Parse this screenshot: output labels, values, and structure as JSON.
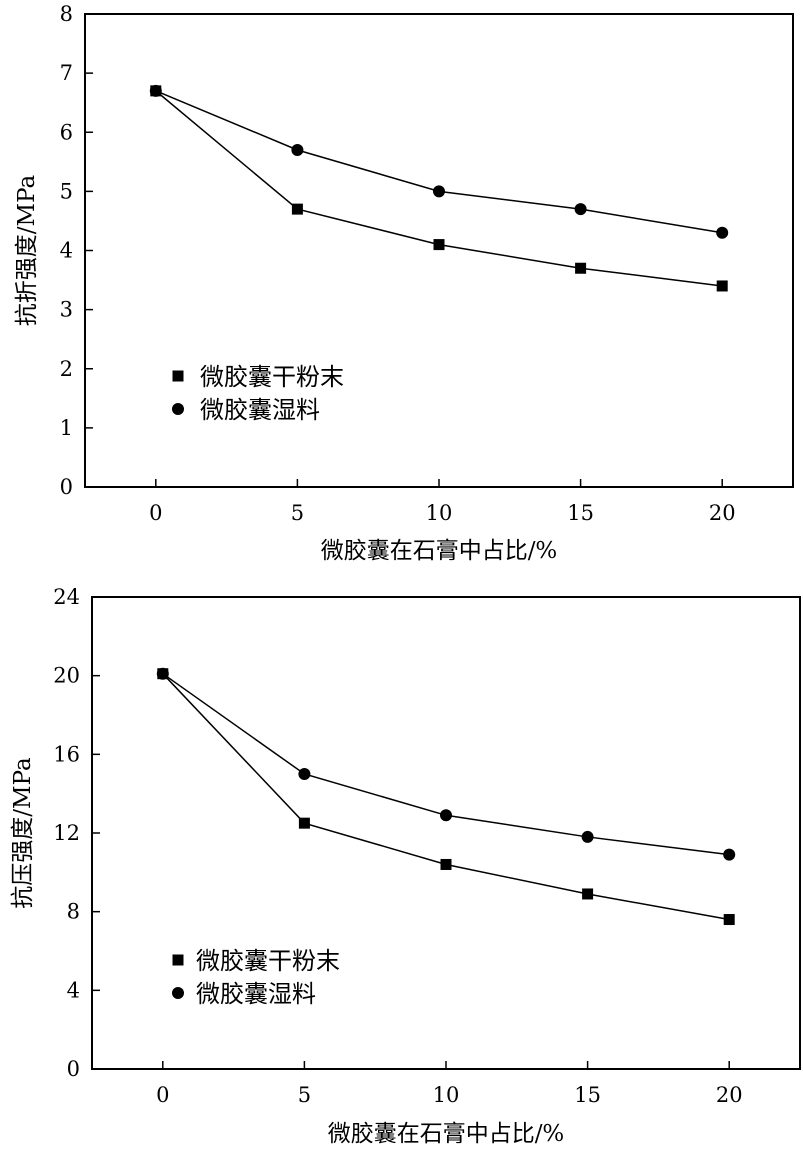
{
  "chart_data": [
    {
      "type": "line",
      "title": "",
      "xlabel": "微胶囊在石膏中占比/%",
      "ylabel": "抗折强度/MPa",
      "x": [
        0,
        5,
        10,
        15,
        20
      ],
      "xlim": [
        -2.5,
        22.5
      ],
      "ylim": [
        0,
        8
      ],
      "xticks": [
        "0",
        "5",
        "10",
        "15",
        "20"
      ],
      "yticks": [
        "0",
        "1",
        "2",
        "3",
        "4",
        "5",
        "6",
        "7",
        "8"
      ],
      "grid": false,
      "legend_position": "left-middle",
      "series": [
        {
          "name": "微胶囊干粉末",
          "marker": "square",
          "values": [
            6.7,
            4.7,
            4.1,
            3.7,
            3.4
          ]
        },
        {
          "name": "微胶囊湿料",
          "marker": "circle",
          "values": [
            6.7,
            5.7,
            5.0,
            4.7,
            4.3
          ]
        }
      ]
    },
    {
      "type": "line",
      "title": "",
      "xlabel": "微胶囊在石膏中占比/%",
      "ylabel": "抗压强度/MPa",
      "x": [
        0,
        5,
        10,
        15,
        20
      ],
      "xlim": [
        -2.5,
        22.5
      ],
      "ylim": [
        0,
        24
      ],
      "xticks": [
        "0",
        "5",
        "10",
        "15",
        "20"
      ],
      "yticks": [
        "0",
        "4",
        "8",
        "12",
        "16",
        "20",
        "24"
      ],
      "grid": false,
      "legend_position": "left-lower",
      "series": [
        {
          "name": "微胶囊干粉末",
          "marker": "square",
          "values": [
            20.1,
            12.5,
            10.4,
            8.9,
            7.6
          ]
        },
        {
          "name": "微胶囊湿料",
          "marker": "circle",
          "values": [
            20.1,
            15.0,
            12.9,
            11.8,
            10.9
          ]
        }
      ]
    }
  ]
}
